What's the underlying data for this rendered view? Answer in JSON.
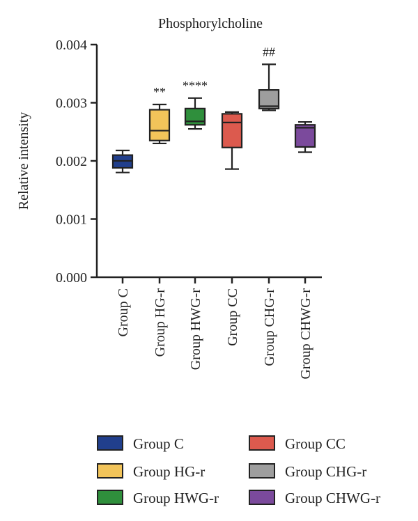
{
  "chart_data": {
    "type": "box",
    "title": "Phosphorylcholine",
    "ylabel": "Relative intensity",
    "xlabel": "",
    "ylim": [
      0,
      0.004
    ],
    "yticks": [
      0.0,
      0.001,
      0.002,
      0.003,
      0.004
    ],
    "ytick_labels": [
      "0.000",
      "0.001",
      "0.002",
      "0.003",
      "0.004"
    ],
    "legend_position": "bottom",
    "groups": [
      {
        "name": "Group C",
        "color": "#213f8c",
        "min": 0.0018,
        "q1": 0.00188,
        "median": 0.002,
        "q3": 0.0021,
        "max": 0.00218,
        "annotation": ""
      },
      {
        "name": "Group HG-r",
        "color": "#f2c45a",
        "min": 0.0023,
        "q1": 0.00235,
        "median": 0.00252,
        "q3": 0.00288,
        "max": 0.00297,
        "annotation": "**"
      },
      {
        "name": "Group HWG-r",
        "color": "#2f8f3c",
        "min": 0.00255,
        "q1": 0.00262,
        "median": 0.00268,
        "q3": 0.0029,
        "max": 0.00308,
        "annotation": "****"
      },
      {
        "name": "Group CC",
        "color": "#dc5a4e",
        "min": 0.00186,
        "q1": 0.00223,
        "median": 0.00266,
        "q3": 0.00281,
        "max": 0.00284,
        "annotation": ""
      },
      {
        "name": "Group CHG-r",
        "color": "#9e9e9e",
        "min": 0.00287,
        "q1": 0.0029,
        "median": 0.00294,
        "q3": 0.00322,
        "max": 0.00366,
        "annotation": "##"
      },
      {
        "name": "Group CHWG-r",
        "color": "#7b4a9c",
        "min": 0.00215,
        "q1": 0.00224,
        "median": 0.00257,
        "q3": 0.00262,
        "max": 0.00267,
        "annotation": ""
      }
    ]
  }
}
